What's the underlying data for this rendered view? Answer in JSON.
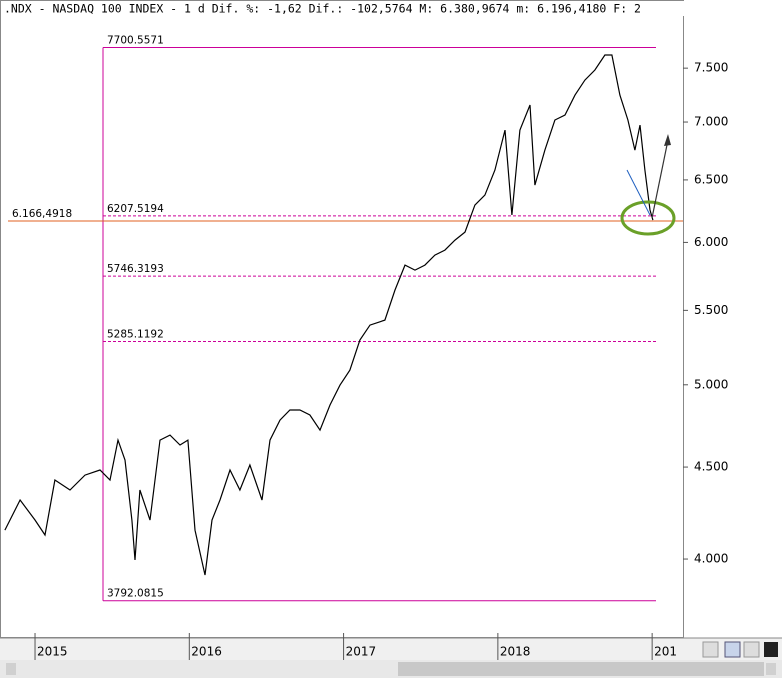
{
  "chart_data": {
    "type": "line",
    "title": ".NDX - NASDAQ 100 INDEX -  1 d Dif. %: -1,62 Dif.: -102,5764 M: 6.380,9674 m: 6.196,4180 F: 2",
    "ylog": true,
    "xlim": [
      2014.773,
      2019.2
    ],
    "ylim": [
      3620,
      8184
    ],
    "xticks": [
      2015,
      2016,
      2017,
      2018,
      {
        "value": 2019,
        "label": "201"
      }
    ],
    "yticks": [
      {
        "value": 4000,
        "label": "4.000"
      },
      {
        "value": 4500,
        "label": "4.500"
      },
      {
        "value": 5000,
        "label": "5.000"
      },
      {
        "value": 5500,
        "label": "5.500"
      },
      {
        "value": 6000,
        "label": "6.000"
      },
      {
        "value": 6500,
        "label": "6.500"
      },
      {
        "value": 7000,
        "label": "7.000"
      },
      {
        "value": 7500,
        "label": "7.500"
      }
    ],
    "fib_levels": [
      7700.5571,
      6207.5194,
      5746.3193,
      5285.1192,
      3792.0815
    ],
    "fib_color": "#cc0099",
    "reference_line": {
      "value": 6166.4918,
      "label": "6.166,4918",
      "color": "#e06020"
    },
    "series": [
      {
        "name": ".NDX",
        "color": "#000000",
        "x": [
          2014.805,
          2014.903,
          2015.0,
          2015.065,
          2015.129,
          2015.227,
          2015.324,
          2015.421,
          2015.486,
          2015.538,
          2015.583,
          2015.628,
          2015.648,
          2015.68,
          2015.745,
          2015.81,
          2015.875,
          2015.94,
          2015.991,
          2016.037,
          2016.102,
          2016.147,
          2016.199,
          2016.264,
          2016.328,
          2016.393,
          2016.471,
          2016.523,
          2016.588,
          2016.652,
          2016.717,
          2016.782,
          2016.847,
          2016.912,
          2016.977,
          2017.041,
          2017.106,
          2017.171,
          2017.268,
          2017.333,
          2017.398,
          2017.463,
          2017.527,
          2017.592,
          2017.657,
          2017.722,
          2017.787,
          2017.851,
          2017.916,
          2017.981,
          2018.046,
          2018.091,
          2018.143,
          2018.208,
          2018.24,
          2018.305,
          2018.37,
          2018.435,
          2018.5,
          2018.564,
          2018.629,
          2018.694,
          2018.739,
          2018.791,
          2018.843,
          2018.888,
          2018.921,
          2018.953,
          2018.986,
          2019.005
        ],
        "values": [
          4151,
          4314,
          4205,
          4125,
          4426,
          4370,
          4454,
          4483,
          4426,
          4658,
          4541,
          4205,
          3995,
          4370,
          4205,
          4658,
          4688,
          4629,
          4658,
          4151,
          3919,
          4205,
          4314,
          4483,
          4370,
          4512,
          4314,
          4658,
          4779,
          4841,
          4841,
          4810,
          4718,
          4872,
          4998,
          5095,
          5295,
          5397,
          5432,
          5645,
          5828,
          5791,
          5828,
          5903,
          5941,
          6018,
          6080,
          6294,
          6375,
          6582,
          6928,
          6214,
          6928,
          7154,
          6457,
          6753,
          7018,
          7063,
          7246,
          7386,
          7482,
          7627,
          7627,
          7246,
          7018,
          6753,
          6973,
          6582,
          6254,
          6174
        ]
      }
    ]
  }
}
